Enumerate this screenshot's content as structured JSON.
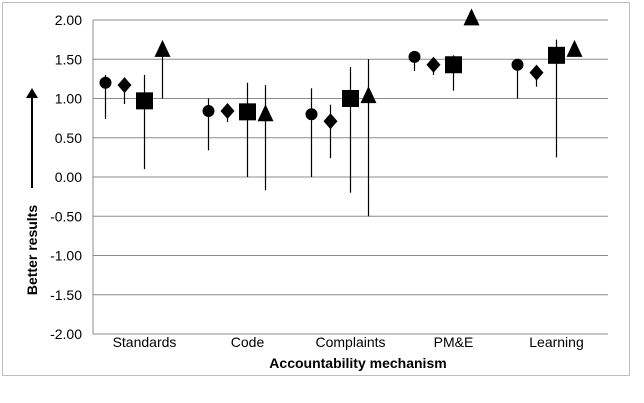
{
  "chart_data": {
    "type": "scatter",
    "title": "",
    "xlabel": "Accountability mechanism",
    "ylabel": "Better results",
    "ylim": [
      -2.0,
      2.0
    ],
    "yticks": [
      "2.00",
      "1.50",
      "1.00",
      "0.50",
      "0.00",
      "-0.50",
      "-1.00",
      "-1.50",
      "-2.00"
    ],
    "categories": [
      "Standards",
      "Code",
      "Complaints",
      "PM&E",
      "Learning"
    ],
    "grid": true,
    "series": [
      {
        "marker": "circle",
        "values": [
          1.2,
          0.84,
          0.8,
          1.53,
          1.43
        ],
        "low": [
          0.74,
          0.34,
          0.0,
          1.35,
          1.0
        ],
        "high": [
          1.3,
          1.0,
          1.13,
          1.6,
          1.45
        ]
      },
      {
        "marker": "diamond",
        "values": [
          1.17,
          0.84,
          0.71,
          1.43,
          1.33
        ],
        "low": [
          0.93,
          0.7,
          0.24,
          1.3,
          1.15
        ],
        "high": [
          1.25,
          0.92,
          0.92,
          1.5,
          1.38
        ]
      },
      {
        "marker": "square",
        "values": [
          0.97,
          0.83,
          1.0,
          1.43,
          1.55
        ],
        "low": [
          0.1,
          0.0,
          -0.2,
          1.1,
          0.25
        ],
        "high": [
          1.3,
          1.2,
          1.4,
          1.55,
          1.75
        ]
      },
      {
        "marker": "triangle",
        "values": [
          1.62,
          0.8,
          1.03,
          2.02,
          1.62
        ],
        "low": [
          1.0,
          -0.17,
          -0.5,
          2.0,
          1.55
        ],
        "high": [
          1.65,
          1.17,
          1.5,
          2.0,
          1.65
        ]
      }
    ]
  }
}
